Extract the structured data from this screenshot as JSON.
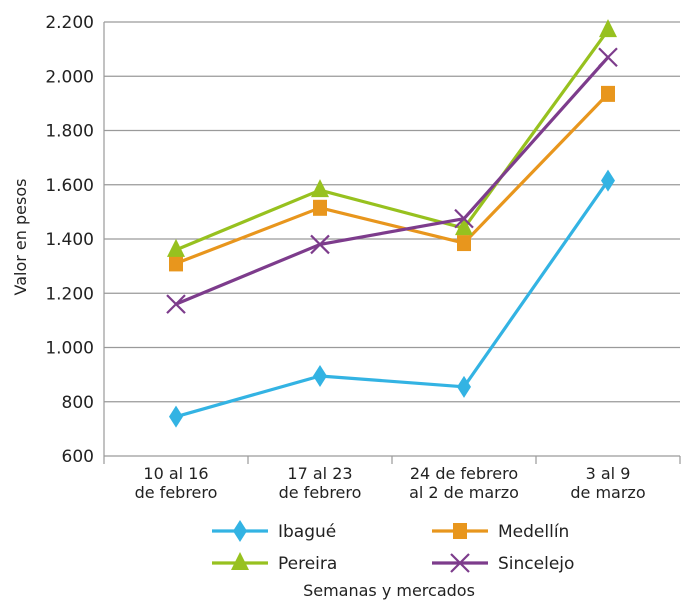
{
  "chart_data": {
    "type": "line",
    "title": "",
    "xlabel": "Semanas y mercados",
    "ylabel": "Valor en pesos",
    "ylim": [
      600,
      2200
    ],
    "y_ticks": [
      "600",
      "800",
      "1.000",
      "1.200",
      "1.400",
      "1.600",
      "1.800",
      "2.000",
      "2.200"
    ],
    "y_tick_values": [
      600,
      800,
      1000,
      1200,
      1400,
      1600,
      1800,
      2000,
      2200
    ],
    "grid": "horizontal",
    "legend_position": "bottom",
    "categories": [
      [
        "10 al 16",
        "de febrero"
      ],
      [
        "17 al 23",
        "de febrero"
      ],
      [
        "24 de febrero",
        "al 2 de marzo"
      ],
      [
        "3 al 9",
        "de marzo"
      ]
    ],
    "series": [
      {
        "name": "Ibagué",
        "values": [
          745,
          895,
          855,
          1615
        ],
        "color": "#33b3e3",
        "marker": "diamond"
      },
      {
        "name": "Medellín",
        "values": [
          1310,
          1515,
          1385,
          1935
        ],
        "color": "#e8961d",
        "marker": "square"
      },
      {
        "name": "Pereira",
        "values": [
          1360,
          1580,
          1440,
          2170
        ],
        "color": "#97c11f",
        "marker": "triangle"
      },
      {
        "name": "Sincelejo",
        "values": [
          1160,
          1380,
          1475,
          2070
        ],
        "color": "#7d3c8c",
        "marker": "x"
      }
    ]
  }
}
